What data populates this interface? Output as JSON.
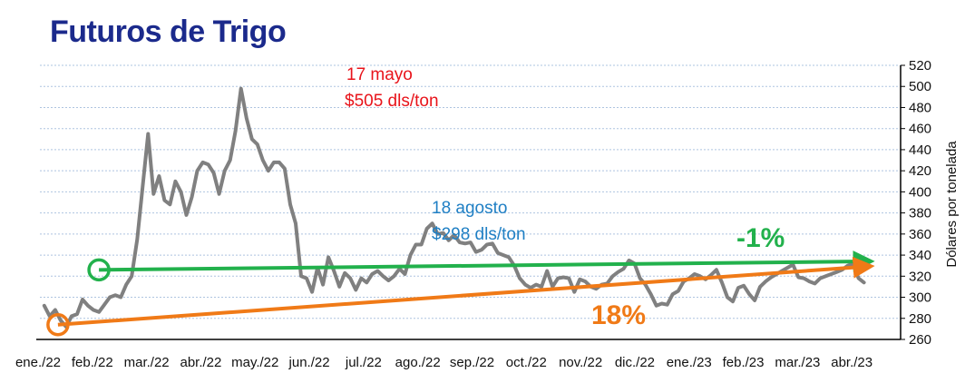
{
  "title": "Futuros de Trigo",
  "colors": {
    "title": "#1b2a8c",
    "series": "#808080",
    "grid": "#aec4e0",
    "trend_green": "#22b14c",
    "trend_orange": "#f07a17",
    "annotation_red": "#e8141b",
    "annotation_blue": "#1f7fc4"
  },
  "annotations": {
    "peak_date": "17 mayo",
    "peak_price": "$505 dls/ton",
    "aug_date": "18 agosto",
    "aug_price": "$298 dls/ton",
    "green_pct": "-1%",
    "orange_pct": "18%"
  },
  "chart_data": {
    "type": "line",
    "title": "Futuros de Trigo",
    "ylabel": "Dólares por tonelada",
    "xlabel": "",
    "ylim": [
      260,
      520
    ],
    "yticks": [
      260,
      280,
      300,
      320,
      340,
      360,
      380,
      400,
      420,
      440,
      460,
      480,
      500,
      520
    ],
    "y_axis_position": "right",
    "grid": "horizontal",
    "x_tick_labels": [
      "ene./22",
      "feb./22",
      "mar./22",
      "abr./22",
      "may./22",
      "jun./22",
      "jul./22",
      "ago./22",
      "sep./22",
      "oct./22",
      "nov./22",
      "dic./22",
      "ene./23",
      "feb./23",
      "mar./23",
      "abr./23"
    ],
    "series": [
      {
        "color": "#808080",
        "x": [
          0.0,
          0.1,
          0.2,
          0.3,
          0.4,
          0.5,
          0.6,
          0.7,
          0.8,
          0.9,
          1.0,
          1.1,
          1.2,
          1.3,
          1.4,
          1.5,
          1.6,
          1.7,
          1.8,
          1.9,
          2.0,
          2.1,
          2.2,
          2.3,
          2.4,
          2.5,
          2.6,
          2.7,
          2.8,
          2.9,
          3.0,
          3.1,
          3.2,
          3.3,
          3.4,
          3.5,
          3.6,
          3.7,
          3.8,
          3.9,
          4.0,
          4.1,
          4.2,
          4.3,
          4.4,
          4.5,
          4.6,
          4.7,
          4.8,
          4.9,
          5.0,
          5.1,
          5.2,
          5.3,
          5.4,
          5.5,
          5.6,
          5.7,
          5.8,
          5.9,
          6.0,
          6.1,
          6.2,
          6.3,
          6.4,
          6.5,
          6.6,
          6.7,
          6.8,
          6.9,
          7.0,
          7.1,
          7.2,
          7.3,
          7.4,
          7.5,
          7.6,
          7.7,
          7.8,
          7.9,
          8.0,
          8.1,
          8.2,
          8.3,
          8.4,
          8.5,
          8.6,
          8.7,
          8.8,
          8.9,
          9.0,
          9.1,
          9.2,
          9.3,
          9.4,
          9.5,
          9.6,
          9.7,
          9.8,
          9.9,
          10.0,
          10.1,
          10.2,
          10.3,
          10.4,
          10.5,
          10.6,
          10.7,
          10.8,
          10.9,
          11.0,
          11.1,
          11.2,
          11.3,
          11.4,
          11.5,
          11.6,
          11.7,
          11.8,
          11.9,
          12.0,
          12.1,
          12.2,
          12.3,
          12.4,
          12.5,
          12.6,
          12.7,
          12.8,
          12.9,
          13.0,
          13.1,
          13.2,
          13.3,
          13.4,
          13.5,
          13.6,
          13.7,
          13.8,
          13.9,
          14.0,
          14.1,
          14.2,
          14.3,
          14.4,
          14.5,
          14.6,
          14.7,
          14.8,
          14.9,
          15.0
        ],
        "values": [
          292,
          282,
          288,
          278,
          272,
          282,
          284,
          298,
          292,
          288,
          286,
          293,
          300,
          302,
          300,
          312,
          320,
          355,
          405,
          455,
          398,
          415,
          392,
          388,
          410,
          400,
          378,
          395,
          420,
          428,
          426,
          418,
          398,
          420,
          430,
          458,
          498,
          470,
          450,
          445,
          430,
          420,
          428,
          428,
          422,
          388,
          370,
          320,
          318,
          305,
          328,
          312,
          338,
          325,
          310,
          323,
          318,
          307,
          318,
          314,
          322,
          325,
          320,
          316,
          320,
          327,
          322,
          340,
          350,
          350,
          365,
          370,
          360,
          361,
          354,
          359,
          352,
          351,
          352,
          343,
          345,
          350,
          351,
          342,
          340,
          338,
          330,
          318,
          312,
          309,
          312,
          310,
          325,
          310,
          318,
          319,
          318,
          305,
          317,
          315,
          310,
          308,
          312,
          313,
          320,
          324,
          327,
          335,
          332,
          318,
          312,
          303,
          292,
          294,
          293,
          303,
          306,
          315,
          318,
          322,
          320,
          317,
          321,
          326,
          314,
          300,
          296,
          309,
          311,
          303,
          297,
          310,
          315,
          319,
          322,
          325,
          328,
          331,
          319,
          318,
          315,
          313,
          318,
          320,
          322,
          324,
          326,
          330,
          332,
          318,
          314
        ]
      }
    ],
    "trendlines": [
      {
        "name": "-1%",
        "color": "#22b14c",
        "x": [
          1.0,
          15.0
        ],
        "y": [
          326,
          334
        ]
      },
      {
        "name": "18%",
        "color": "#f07a17",
        "x": [
          0.25,
          15.0
        ],
        "y": [
          274,
          329
        ]
      }
    ]
  }
}
